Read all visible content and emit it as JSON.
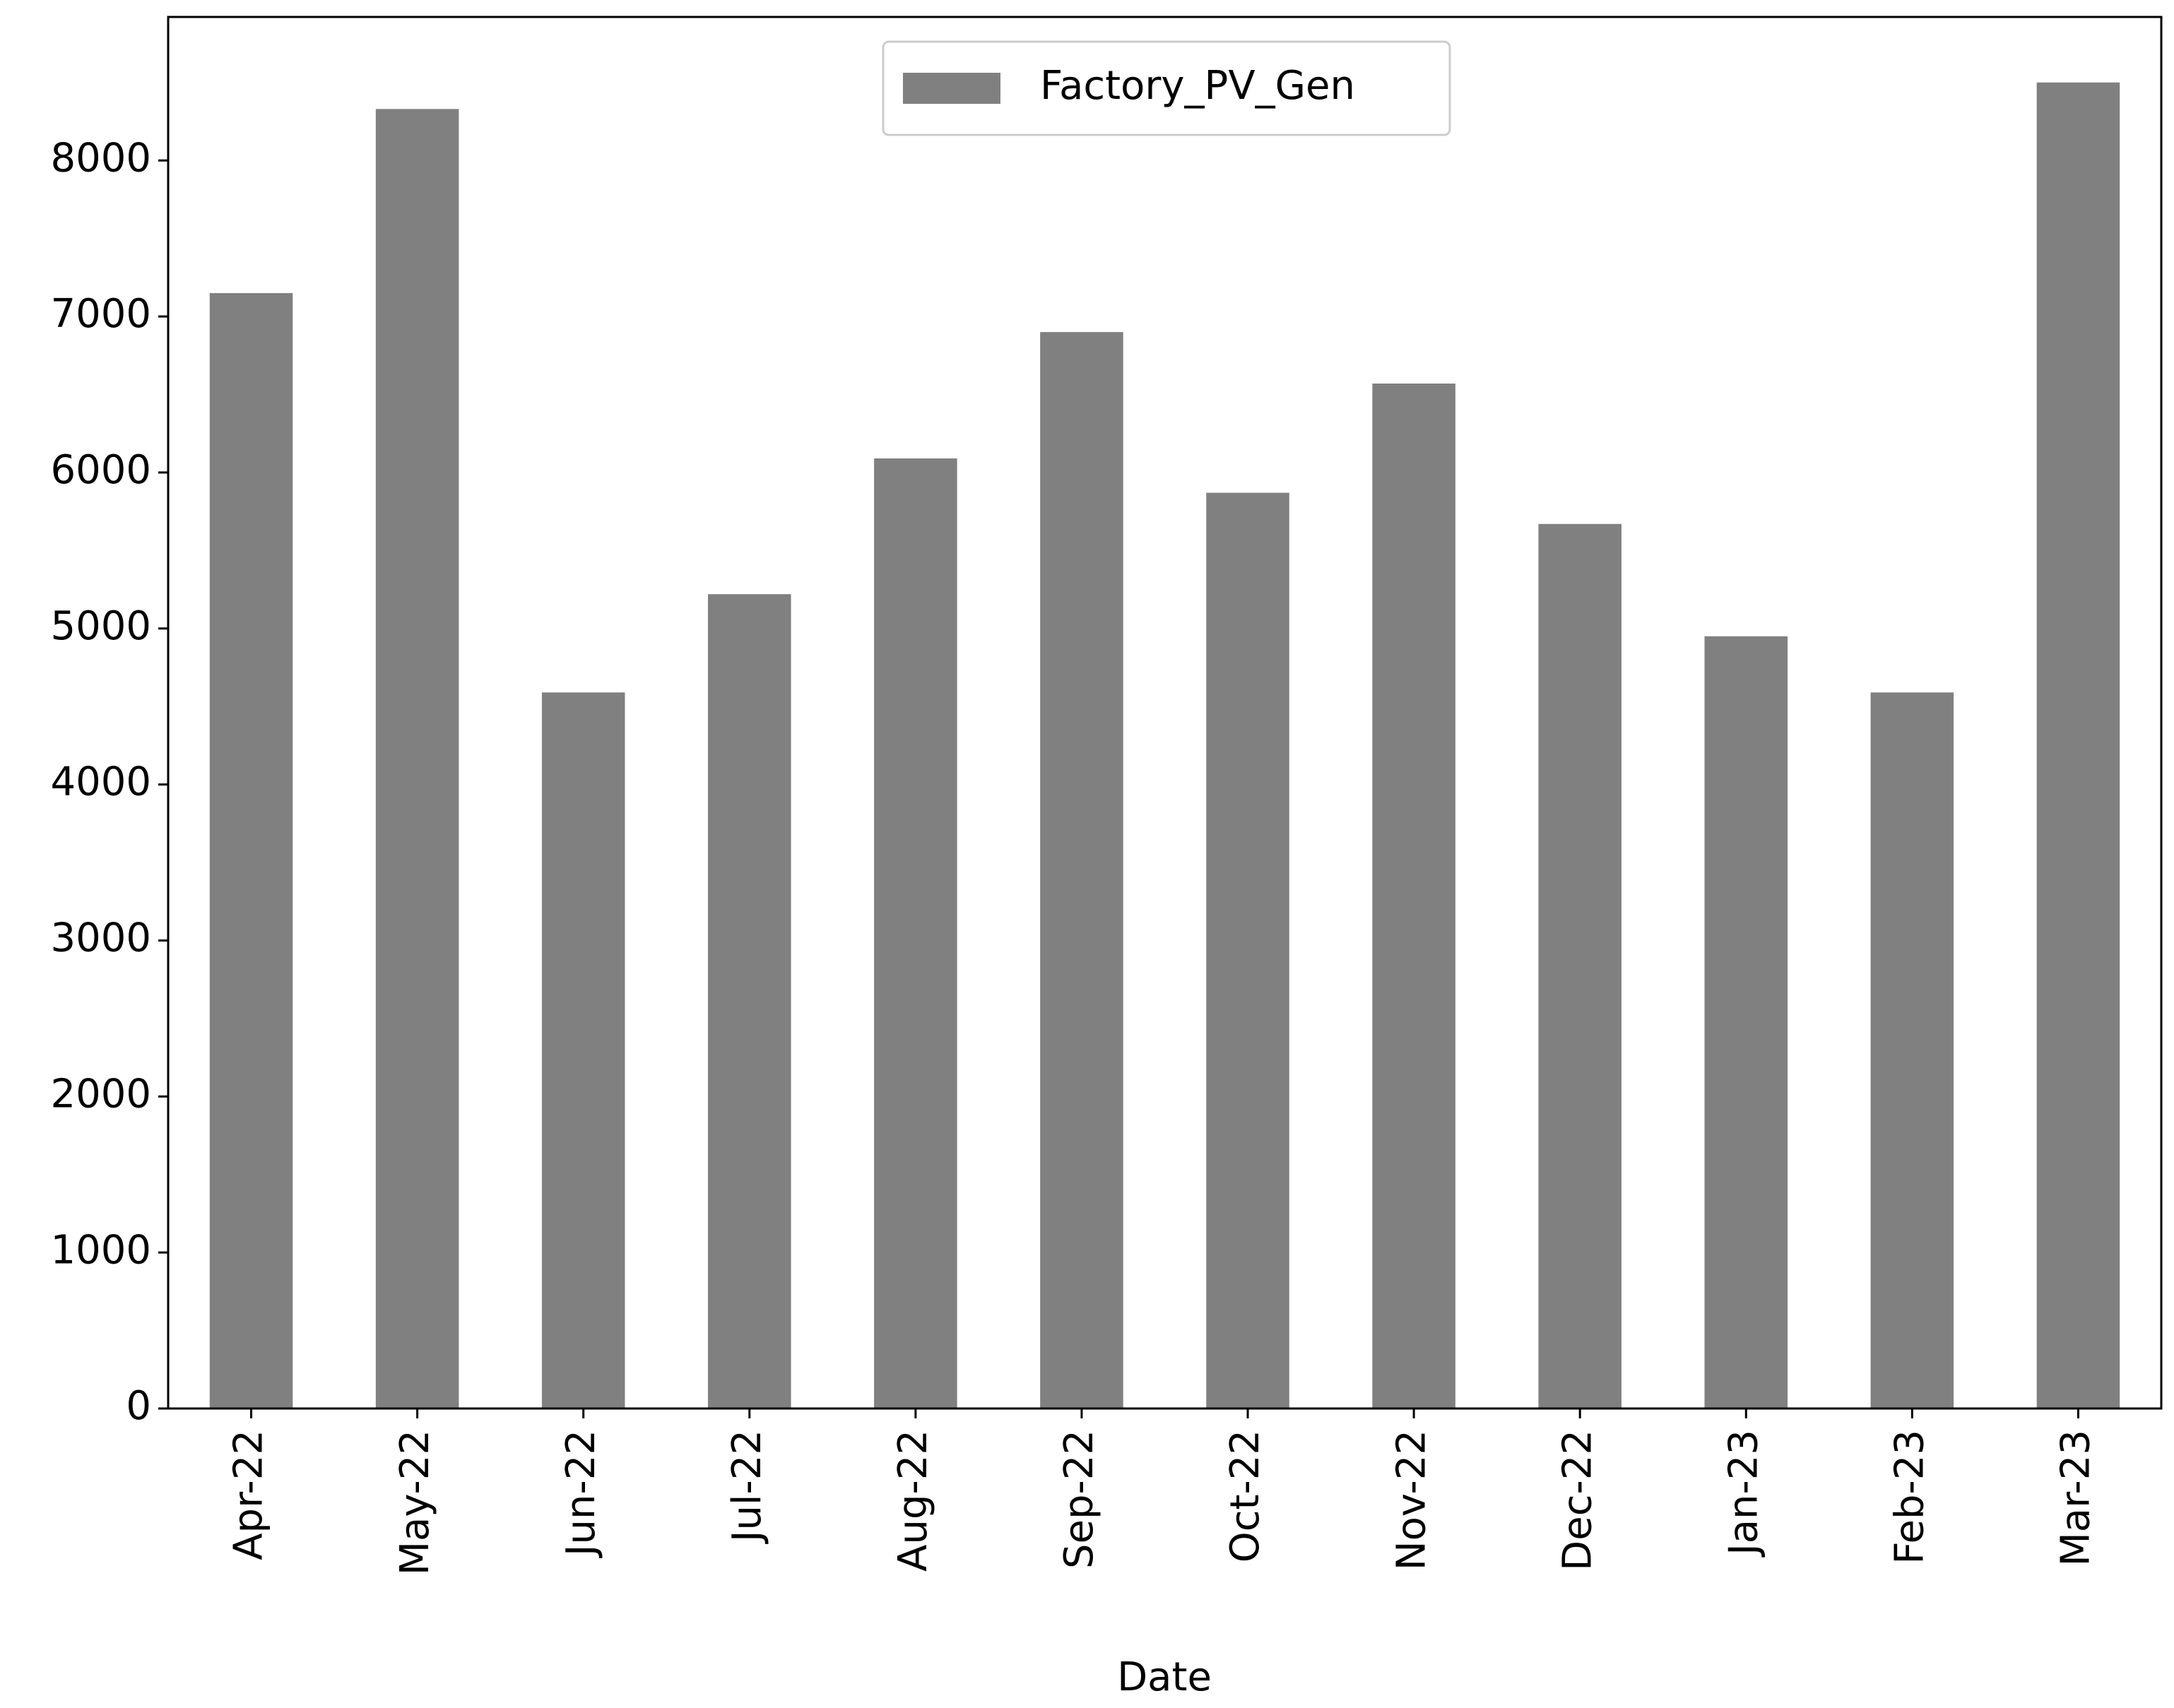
{
  "chart_data": {
    "type": "bar",
    "x_label": "Date",
    "categories": [
      "Apr-22",
      "May-22",
      "Jun-22",
      "Jul-22",
      "Aug-22",
      "Sep-22",
      "Oct-22",
      "Nov-22",
      "Dec-22",
      "Jan-23",
      "Feb-23",
      "Mar-23"
    ],
    "series": [
      {
        "name": "Factory_PV_Gen",
        "color": "#808080",
        "values": [
          7150,
          8330,
          4590,
          5220,
          6090,
          6900,
          5870,
          6570,
          5670,
          4950,
          4590,
          8500
        ]
      }
    ],
    "ylim": [
      0,
      8920
    ],
    "yticks": [
      0,
      1000,
      2000,
      3000,
      4000,
      5000,
      6000,
      7000,
      8000
    ],
    "grid": false,
    "legend": "upper center"
  }
}
